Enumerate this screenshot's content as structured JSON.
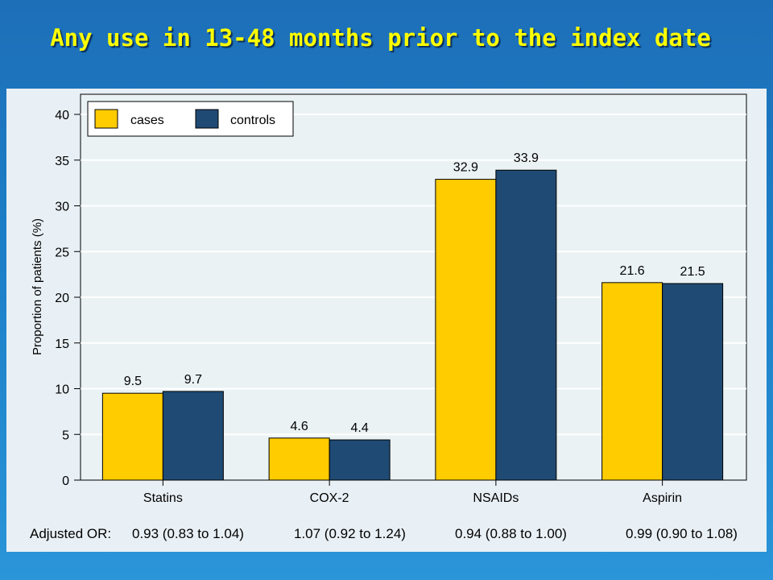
{
  "title": "Any use in 13-48 months prior to the index date",
  "chart_data": {
    "type": "bar",
    "categories": [
      "Statins",
      "COX-2",
      "NSAIDs",
      "Aspirin"
    ],
    "series": [
      {
        "name": "cases",
        "values": [
          9.5,
          4.6,
          32.9,
          21.6
        ],
        "labels": [
          "9.5",
          "4.6",
          "32.9",
          "21.6"
        ],
        "color": "#ffcc00"
      },
      {
        "name": "controls",
        "values": [
          9.7,
          4.4,
          33.9,
          21.5
        ],
        "labels": [
          "9.7",
          "4.4",
          "33.9",
          "21.5"
        ],
        "color": "#1f4a73"
      }
    ],
    "ylabel": "Proportion of patients (%)",
    "xlabel": "",
    "ylim": [
      0,
      42
    ],
    "yticks": [
      "0",
      "5",
      "10",
      "15",
      "20",
      "25",
      "30",
      "35",
      "40"
    ],
    "grid": true,
    "legend_position": "top-left",
    "footnote": {
      "label": "Adjusted OR:",
      "values": [
        "0.93 (0.83 to 1.04)",
        "1.07 (0.92 to 1.24)",
        "0.94 (0.88 to 1.00)",
        "0.99 (0.90 to 1.08)"
      ]
    }
  }
}
